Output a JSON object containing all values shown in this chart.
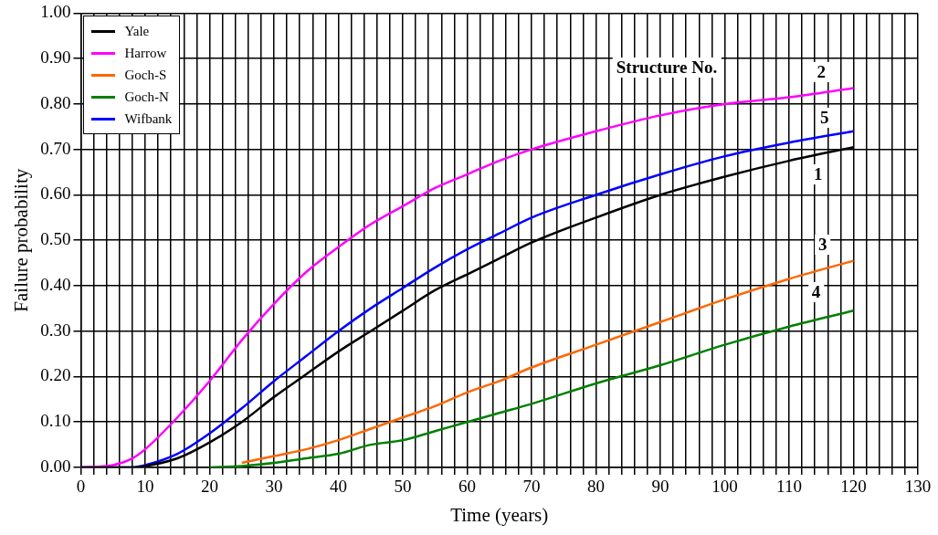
{
  "chart_data": {
    "type": "line",
    "xlabel": "Time (years)",
    "ylabel": "Failure probability",
    "xlim": [
      0,
      130
    ],
    "xticks": [
      0,
      {
        "value": 2,
        "label": null
      },
      {
        "value": 4,
        "label": null
      },
      {
        "value": 6,
        "label": null
      },
      {
        "value": 8,
        "label": null
      },
      10,
      {
        "value": 12,
        "label": null
      },
      {
        "value": 14,
        "label": null
      },
      {
        "value": 16,
        "label": null
      },
      {
        "value": 18,
        "label": null
      },
      20,
      {
        "value": 22,
        "label": null
      },
      {
        "value": 24,
        "label": null
      },
      {
        "value": 26,
        "label": null
      },
      {
        "value": 28,
        "label": null
      },
      30,
      {
        "value": 32,
        "label": null
      },
      {
        "value": 34,
        "label": null
      },
      {
        "value": 36,
        "label": null
      },
      {
        "value": 38,
        "label": null
      },
      40,
      {
        "value": 42,
        "label": null
      },
      {
        "value": 44,
        "label": null
      },
      {
        "value": 46,
        "label": null
      },
      {
        "value": 48,
        "label": null
      },
      50,
      {
        "value": 52,
        "label": null
      },
      {
        "value": 54,
        "label": null
      },
      {
        "value": 56,
        "label": null
      },
      {
        "value": 58,
        "label": null
      },
      60,
      {
        "value": 62,
        "label": null
      },
      {
        "value": 64,
        "label": null
      },
      {
        "value": 66,
        "label": null
      },
      {
        "value": 68,
        "label": null
      },
      70,
      {
        "value": 72,
        "label": null
      },
      {
        "value": 74,
        "label": null
      },
      {
        "value": 76,
        "label": null
      },
      {
        "value": 78,
        "label": null
      },
      80,
      {
        "value": 82,
        "label": null
      },
      {
        "value": 84,
        "label": null
      },
      {
        "value": 86,
        "label": null
      },
      {
        "value": 88,
        "label": null
      },
      90,
      {
        "value": 92,
        "label": null
      },
      {
        "value": 94,
        "label": null
      },
      {
        "value": 96,
        "label": null
      },
      {
        "value": 98,
        "label": null
      },
      100,
      {
        "value": 102,
        "label": null
      },
      {
        "value": 104,
        "label": null
      },
      {
        "value": 106,
        "label": null
      },
      {
        "value": 108,
        "label": null
      },
      110,
      {
        "value": 112,
        "label": null
      },
      {
        "value": 114,
        "label": null
      },
      {
        "value": 116,
        "label": null
      },
      {
        "value": 118,
        "label": null
      },
      120,
      {
        "value": 122,
        "label": null
      },
      {
        "value": 124,
        "label": null
      },
      {
        "value": 126,
        "label": null
      },
      {
        "value": 128,
        "label": null
      },
      130
    ],
    "ylim": [
      0,
      1
    ],
    "yticks": [
      {
        "value": 0,
        "label": "0.00"
      },
      {
        "value": 0.1,
        "label": "0.10"
      },
      {
        "value": 0.2,
        "label": "0.20"
      },
      {
        "value": 0.3,
        "label": "0.30"
      },
      {
        "value": 0.4,
        "label": "0.40"
      },
      {
        "value": 0.5,
        "label": "0.50"
      },
      {
        "value": 0.6,
        "label": "0.60"
      },
      {
        "value": 0.7,
        "label": "0.70"
      },
      {
        "value": 0.8,
        "label": "0.80"
      },
      {
        "value": 0.9,
        "label": "0.90"
      },
      {
        "value": 1,
        "label": "1.00"
      }
    ],
    "grid": true,
    "legend": "top left",
    "marker": "none",
    "line_style": "solid",
    "x": [
      0,
      5,
      8,
      10,
      15,
      20,
      25,
      30,
      35,
      40,
      45,
      50,
      55,
      60,
      65,
      70,
      80,
      90,
      100,
      110,
      120
    ],
    "series": [
      {
        "name": "Yale",
        "color": "#000000",
        "values": [
          0,
          0,
          0,
          0.003,
          0.02,
          0.055,
          0.1,
          0.155,
          0.205,
          0.255,
          0.3,
          0.345,
          0.39,
          0.425,
          0.46,
          0.495,
          0.55,
          0.6,
          0.64,
          0.675,
          0.705
        ]
      },
      {
        "name": "Harrow",
        "color": "#ff00ff",
        "values": [
          0,
          0.005,
          0.02,
          0.04,
          0.11,
          0.19,
          0.28,
          0.36,
          0.43,
          0.485,
          0.535,
          0.575,
          0.615,
          0.645,
          0.675,
          0.7,
          0.74,
          0.775,
          0.8,
          0.815,
          0.835
        ]
      },
      {
        "name": "Goch-S",
        "color": "#ff6600",
        "x": [
          25,
          30,
          35,
          40,
          45,
          50,
          55,
          60,
          65,
          70,
          80,
          90,
          100,
          110,
          120
        ],
        "values": [
          0.01,
          0.025,
          0.04,
          0.06,
          0.085,
          0.11,
          0.135,
          0.165,
          0.19,
          0.22,
          0.27,
          0.32,
          0.37,
          0.415,
          0.455
        ]
      },
      {
        "name": "Goch-N",
        "color": "#008000",
        "x": [
          20,
          25,
          30,
          35,
          40,
          45,
          50,
          55,
          60,
          65,
          70,
          80,
          90,
          100,
          110,
          120
        ],
        "values": [
          0,
          0.003,
          0.01,
          0.02,
          0.03,
          0.05,
          0.06,
          0.08,
          0.1,
          0.12,
          0.14,
          0.185,
          0.225,
          0.27,
          0.31,
          0.345
        ]
      },
      {
        "name": "Wifbank",
        "color": "#0000ff",
        "values": [
          0,
          0,
          0,
          0.005,
          0.03,
          0.075,
          0.13,
          0.19,
          0.245,
          0.3,
          0.35,
          0.395,
          0.44,
          0.48,
          0.515,
          0.55,
          0.6,
          0.645,
          0.685,
          0.715,
          0.74
        ]
      }
    ],
    "annotations": [
      "Structure No.",
      {
        "text": "2",
        "x": 115,
        "y": 0.87
      },
      {
        "text": "5",
        "x": 115.5,
        "y": 0.77
      },
      {
        "text": "1",
        "x": 114.5,
        "y": 0.645
      },
      {
        "text": "3",
        "x": 115.2,
        "y": 0.49
      },
      {
        "text": "4",
        "x": 114.2,
        "y": 0.385
      }
    ]
  }
}
